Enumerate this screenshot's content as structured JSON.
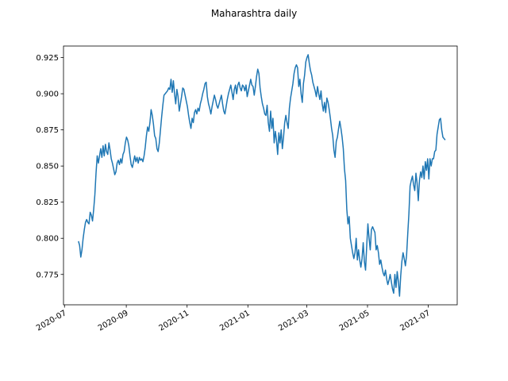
{
  "chart_data": {
    "type": "line",
    "title": "Maharashtra daily",
    "xlabel": "",
    "ylabel": "",
    "grid": false,
    "x_start": "2020-07-15",
    "x_end": "2021-07-18",
    "xlim": [
      "2020-06-30",
      "2021-07-30"
    ],
    "ylim": [
      0.754,
      0.933
    ],
    "yticks": [
      0.775,
      0.8,
      0.825,
      0.85,
      0.875,
      0.9,
      0.925
    ],
    "ytick_labels": [
      "0.775",
      "0.800",
      "0.825",
      "0.850",
      "0.875",
      "0.900",
      "0.925"
    ],
    "xticks": [
      "2020-07-01",
      "2020-09-01",
      "2020-11-01",
      "2021-01-01",
      "2021-03-01",
      "2021-05-01",
      "2021-07-01"
    ],
    "xtick_labels": [
      "2020-07",
      "2020-09",
      "2020-11",
      "2021-01",
      "2021-03",
      "2021-05",
      "2021-07"
    ],
    "series": [
      {
        "name": "",
        "color": "#1f77b4",
        "values": [
          0.798,
          0.795,
          0.787,
          0.792,
          0.8,
          0.806,
          0.811,
          0.813,
          0.811,
          0.81,
          0.818,
          0.816,
          0.812,
          0.82,
          0.83,
          0.845,
          0.857,
          0.852,
          0.857,
          0.862,
          0.856,
          0.864,
          0.857,
          0.865,
          0.86,
          0.858,
          0.866,
          0.861,
          0.855,
          0.852,
          0.848,
          0.844,
          0.846,
          0.852,
          0.854,
          0.851,
          0.855,
          0.852,
          0.858,
          0.86,
          0.866,
          0.87,
          0.868,
          0.864,
          0.857,
          0.851,
          0.849,
          0.853,
          0.857,
          0.853,
          0.856,
          0.852,
          0.856,
          0.854,
          0.855,
          0.853,
          0.857,
          0.863,
          0.871,
          0.877,
          0.874,
          0.88,
          0.889,
          0.885,
          0.879,
          0.871,
          0.869,
          0.862,
          0.86,
          0.866,
          0.875,
          0.884,
          0.892,
          0.899,
          0.9,
          0.901,
          0.902,
          0.904,
          0.903,
          0.91,
          0.901,
          0.909,
          0.9,
          0.893,
          0.903,
          0.898,
          0.888,
          0.893,
          0.898,
          0.904,
          0.903,
          0.899,
          0.895,
          0.891,
          0.885,
          0.88,
          0.876,
          0.883,
          0.88,
          0.887,
          0.889,
          0.886,
          0.89,
          0.888,
          0.893,
          0.896,
          0.9,
          0.903,
          0.907,
          0.908,
          0.898,
          0.893,
          0.89,
          0.886,
          0.891,
          0.895,
          0.899,
          0.896,
          0.892,
          0.89,
          0.893,
          0.896,
          0.899,
          0.893,
          0.888,
          0.886,
          0.891,
          0.896,
          0.9,
          0.903,
          0.906,
          0.901,
          0.896,
          0.903,
          0.906,
          0.9,
          0.906,
          0.908,
          0.904,
          0.902,
          0.906,
          0.905,
          0.902,
          0.906,
          0.898,
          0.902,
          0.906,
          0.91,
          0.906,
          0.905,
          0.899,
          0.905,
          0.912,
          0.917,
          0.914,
          0.904,
          0.898,
          0.893,
          0.89,
          0.886,
          0.885,
          0.892,
          0.88,
          0.874,
          0.888,
          0.876,
          0.883,
          0.866,
          0.874,
          0.868,
          0.858,
          0.873,
          0.866,
          0.875,
          0.862,
          0.87,
          0.88,
          0.885,
          0.88,
          0.876,
          0.89,
          0.897,
          0.902,
          0.907,
          0.914,
          0.918,
          0.92,
          0.918,
          0.905,
          0.91,
          0.9,
          0.894,
          0.907,
          0.913,
          0.922,
          0.925,
          0.927,
          0.921,
          0.916,
          0.913,
          0.908,
          0.905,
          0.902,
          0.898,
          0.905,
          0.9,
          0.896,
          0.902,
          0.893,
          0.888,
          0.894,
          0.887,
          0.897,
          0.894,
          0.889,
          0.883,
          0.876,
          0.871,
          0.861,
          0.856,
          0.867,
          0.87,
          0.876,
          0.881,
          0.876,
          0.87,
          0.862,
          0.848,
          0.84,
          0.82,
          0.81,
          0.815,
          0.8,
          0.795,
          0.79,
          0.786,
          0.79,
          0.8,
          0.785,
          0.792,
          0.785,
          0.78,
          0.786,
          0.797,
          0.784,
          0.778,
          0.795,
          0.81,
          0.8,
          0.792,
          0.806,
          0.808,
          0.806,
          0.804,
          0.792,
          0.795,
          0.79,
          0.782,
          0.785,
          0.78,
          0.776,
          0.774,
          0.778,
          0.772,
          0.768,
          0.771,
          0.775,
          0.77,
          0.765,
          0.762,
          0.775,
          0.766,
          0.777,
          0.77,
          0.76,
          0.774,
          0.784,
          0.79,
          0.786,
          0.781,
          0.788,
          0.803,
          0.817,
          0.836,
          0.84,
          0.843,
          0.837,
          0.833,
          0.845,
          0.838,
          0.826,
          0.84,
          0.846,
          0.842,
          0.85,
          0.841,
          0.853,
          0.847,
          0.855,
          0.841,
          0.855,
          0.85,
          0.855,
          0.855,
          0.86,
          0.861,
          0.872,
          0.877,
          0.882,
          0.883,
          0.875,
          0.87,
          0.869,
          0.868
        ]
      }
    ]
  }
}
